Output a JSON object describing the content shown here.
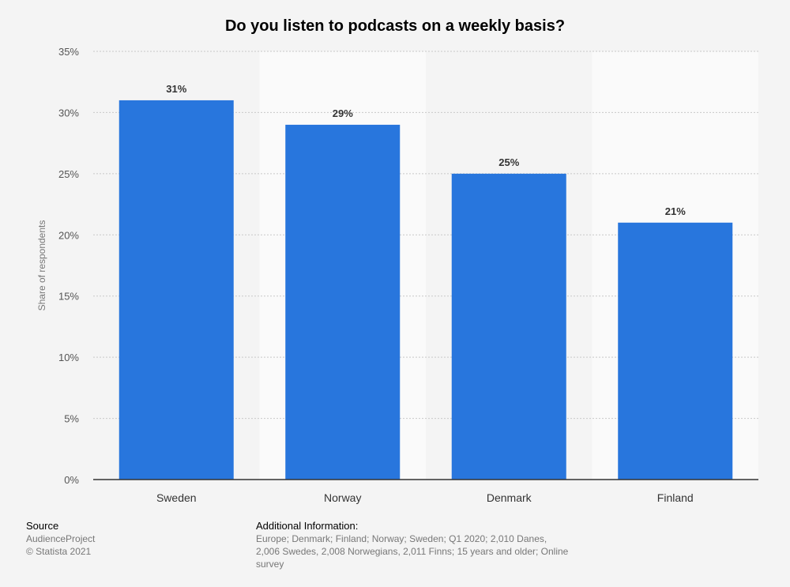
{
  "chart_data": {
    "type": "bar",
    "title": "Do you listen to podcasts on a weekly basis?",
    "ylabel": "Share of respondents",
    "xlabel": "",
    "categories": [
      "Sweden",
      "Norway",
      "Denmark",
      "Finland"
    ],
    "values": [
      31,
      29,
      25,
      21
    ],
    "value_labels": [
      "31%",
      "29%",
      "25%",
      "21%"
    ],
    "ylim": [
      0,
      35
    ],
    "yticks": [
      "0%",
      "5%",
      "10%",
      "15%",
      "20%",
      "25%",
      "30%",
      "35%"
    ],
    "grid": true,
    "bar_color": "#2876dd"
  },
  "footer": {
    "source_heading": "Source",
    "source_name": "AudienceProject",
    "copyright": "© Statista 2021",
    "info_heading": "Additional Information:",
    "info_text": "Europe; Denmark; Finland; Norway; Sweden; Q1 2020; 2,010 Danes, 2,006 Swedes, 2,008 Norwegians, 2,011 Finns; 15 years and older; Online survey"
  }
}
